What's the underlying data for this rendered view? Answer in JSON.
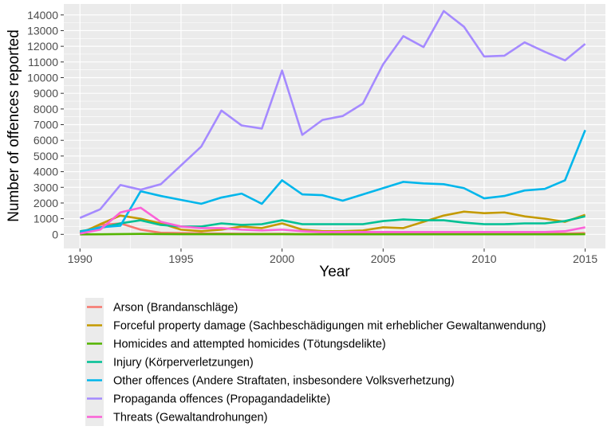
{
  "chart_data": {
    "type": "line",
    "title": "",
    "xlabel": "Year",
    "ylabel": "Number of offences reported",
    "xlim": [
      1989.2,
      2016.0
    ],
    "ylim": [
      -900,
      14700
    ],
    "x_ticks": [
      1990,
      1995,
      2000,
      2005,
      2010,
      2015
    ],
    "x_tick_labels": [
      "1990",
      "1995",
      "2000",
      "2005",
      "2010",
      "2015"
    ],
    "y_ticks": [
      0,
      1000,
      2000,
      3000,
      4000,
      5000,
      6000,
      7000,
      8000,
      9000,
      10000,
      11000,
      12000,
      13000,
      14000
    ],
    "y_tick_labels": [
      "0",
      "1000",
      "2000",
      "3000",
      "4000",
      "5000",
      "6000",
      "7000",
      "8000",
      "9000",
      "10000",
      "11000",
      "12000",
      "13000",
      "14000"
    ],
    "grid": true,
    "legend_position": "bottom",
    "x": [
      1990,
      1991,
      1992,
      1993,
      1994,
      1995,
      1996,
      1997,
      1998,
      1999,
      2000,
      2001,
      2002,
      2003,
      2004,
      2005,
      2006,
      2007,
      2008,
      2009,
      2010,
      2011,
      2012,
      2013,
      2014,
      2015
    ],
    "series": [
      {
        "name": "Arson (Brandanschläge)",
        "color": "#F8766D",
        "values": [
          100,
          600,
          700,
          300,
          100,
          80,
          60,
          50,
          40,
          30,
          40,
          20,
          20,
          30,
          30,
          30,
          40,
          40,
          40,
          40,
          40,
          40,
          40,
          40,
          50,
          80
        ]
      },
      {
        "name": "Forceful property damage (Sachbeschädigungen mit erheblicher Gewaltanwendung)",
        "color": "#C49A00",
        "values": [
          50,
          650,
          1200,
          1000,
          700,
          300,
          200,
          300,
          500,
          400,
          700,
          300,
          200,
          200,
          250,
          450,
          400,
          800,
          1200,
          1450,
          1350,
          1400,
          1150,
          1000,
          800,
          1250
        ]
      },
      {
        "name": "Homicides and attempted homicides (Tötungsdelikte)",
        "color": "#53B400",
        "values": [
          0,
          5,
          20,
          30,
          20,
          10,
          10,
          10,
          10,
          10,
          10,
          5,
          5,
          5,
          5,
          5,
          5,
          5,
          5,
          5,
          5,
          5,
          5,
          5,
          5,
          10
        ]
      },
      {
        "name": "Injury (Körperverletzungen)",
        "color": "#00C094",
        "values": [
          200,
          400,
          700,
          900,
          600,
          500,
          500,
          700,
          600,
          650,
          900,
          650,
          650,
          650,
          650,
          850,
          950,
          900,
          900,
          750,
          650,
          650,
          700,
          700,
          850,
          1150
        ]
      },
      {
        "name": "Other offences (Andere Straftaten, insbesondere Volksverhetzung)",
        "color": "#00B6EB",
        "values": [
          150,
          450,
          550,
          2750,
          2450,
          2200,
          1950,
          2350,
          2600,
          1950,
          3450,
          2550,
          2500,
          2150,
          2550,
          2950,
          3350,
          3250,
          3200,
          2950,
          2300,
          2450,
          2800,
          2900,
          3450,
          6650
        ]
      },
      {
        "name": "Propaganda offences (Propagandadelikte)",
        "color": "#A58AFF",
        "values": [
          1050,
          1600,
          3150,
          2850,
          3200,
          4400,
          5600,
          7900,
          6950,
          6750,
          10450,
          6350,
          7300,
          7550,
          8350,
          10850,
          12650,
          11950,
          14250,
          13250,
          11350,
          11400,
          12250,
          11650,
          11100,
          12150
        ]
      },
      {
        "name": "Threats (Gewaltandrohungen)",
        "color": "#FB61D7",
        "values": [
          50,
          300,
          1400,
          1700,
          800,
          500,
          400,
          400,
          300,
          250,
          300,
          200,
          150,
          150,
          150,
          150,
          150,
          150,
          150,
          150,
          150,
          150,
          150,
          150,
          200,
          450
        ]
      }
    ]
  }
}
